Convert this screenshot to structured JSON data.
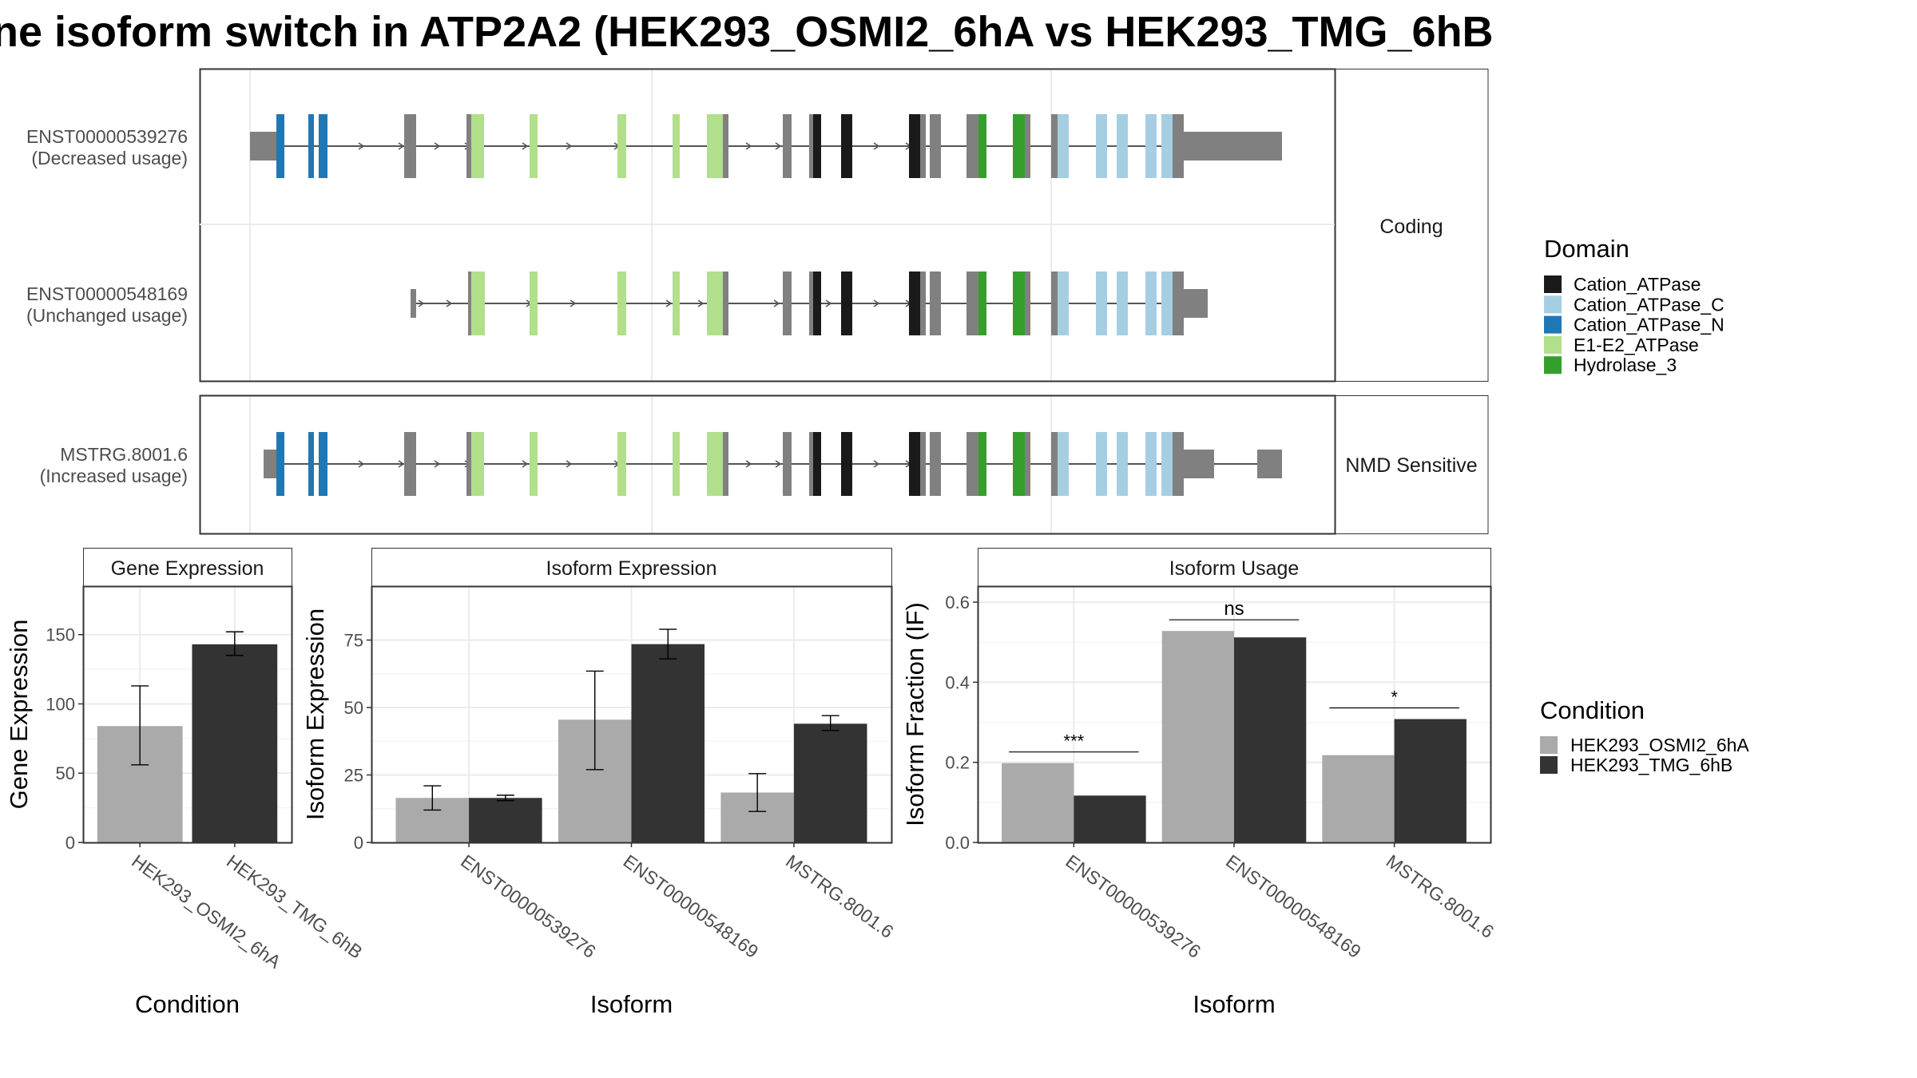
{
  "title": "ne isoform switch in ATP2A2 (HEK293_OSMI2_6hA vs HEK293_TMG_6hB",
  "colors": {
    "exon_plain": "#808080",
    "intron": "#555555",
    "panel_border": "#333333",
    "grid": "#ebebeb",
    "condA": "#aaaaaa",
    "condB": "#333333",
    "domains": {
      "Cation_ATPase": "#1a1a1a",
      "Cation_ATPase_C": "#a6cee3",
      "Cation_ATPase_N": "#1f78b4",
      "E1-E2_ATPase": "#b2df8a",
      "Hydrolase_3": "#33a02c"
    }
  },
  "structure": {
    "facets": [
      "Coding",
      "NMD Sensitive"
    ],
    "isoforms": [
      {
        "id": "ENST00000539276",
        "usage": "(Decreased usage)",
        "facet": "Coding"
      },
      {
        "id": "ENST00000548169",
        "usage": "(Unchanged usage)",
        "facet": "Coding"
      },
      {
        "id": "MSTRG.8001.6",
        "usage": "(Increased usage)",
        "facet": "NMD Sensitive"
      }
    ],
    "legend_title": "Domain",
    "legend_items": [
      "Cation_ATPase",
      "Cation_ATPase_C",
      "Cation_ATPase_N",
      "E1-E2_ATPase",
      "Hydrolase_3"
    ]
  },
  "chart_data": [
    {
      "type": "bar",
      "title": "Gene Expression",
      "xlabel": "Condition",
      "ylabel": "Gene Expression",
      "categories": [
        "HEK293_OSMI2_6hA",
        "HEK293_TMG_6hB"
      ],
      "values": [
        84,
        143
      ],
      "errors": [
        [
          56,
          113
        ],
        [
          135,
          152
        ]
      ],
      "ylim": [
        0,
        185
      ],
      "yticks": [
        0,
        50,
        100,
        150
      ]
    },
    {
      "type": "bar",
      "title": "Isoform Expression",
      "xlabel": "Isoform",
      "ylabel": "Isoform Expression",
      "categories": [
        "ENST00000539276",
        "ENST00000548169",
        "MSTRG.8001.6"
      ],
      "series": [
        {
          "name": "HEK293_OSMI2_6hA",
          "values": [
            16.5,
            45.5,
            18.5
          ],
          "errors": [
            [
              12,
              21
            ],
            [
              27,
              63.5
            ],
            [
              11.5,
              25.5
            ]
          ]
        },
        {
          "name": "HEK293_TMG_6hB",
          "values": [
            16.5,
            73.5,
            44
          ],
          "errors": [
            [
              15.5,
              17.5
            ],
            [
              68,
              79
            ],
            [
              41.5,
              47
            ]
          ]
        }
      ],
      "ylim": [
        0,
        95
      ],
      "yticks": [
        0,
        25,
        50,
        75
      ]
    },
    {
      "type": "bar",
      "title": "Isoform Usage",
      "xlabel": "Isoform",
      "ylabel": "Isoform Fraction (IF)",
      "categories": [
        "ENST00000539276",
        "ENST00000548169",
        "MSTRG.8001.6"
      ],
      "series": [
        {
          "name": "HEK293_OSMI2_6hA",
          "values": [
            0.198,
            0.528,
            0.218
          ]
        },
        {
          "name": "HEK293_TMG_6hB",
          "values": [
            0.117,
            0.512,
            0.308
          ]
        }
      ],
      "significance": [
        "***",
        "ns",
        "*"
      ],
      "ylim": [
        0,
        0.64
      ],
      "yticks": [
        "0.0",
        "0.2",
        "0.4",
        "0.6"
      ]
    }
  ],
  "condition_legend": {
    "title": "Condition",
    "items": [
      "HEK293_OSMI2_6hA",
      "HEK293_TMG_6hB"
    ]
  }
}
